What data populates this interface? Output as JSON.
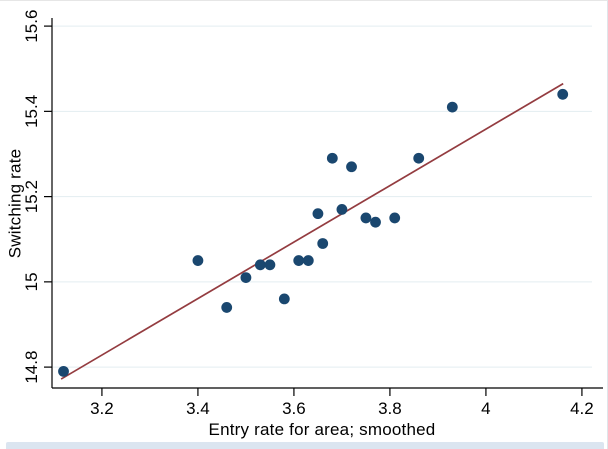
{
  "figure": {
    "background": "#ffffff",
    "border_top_color": "#e6e6e6",
    "border_right_color": "#dfe5ea",
    "bottom_strip_color": "#dbe5f0"
  },
  "chart_data": {
    "type": "scatter",
    "title": "",
    "xlabel": "Entry rate for area; smoothed",
    "ylabel": "Switching rate",
    "xlim": [
      3.096,
      4.221
    ],
    "ylim": [
      14.751,
      15.619
    ],
    "x_ticks": [
      3.2,
      3.4,
      3.6,
      3.8,
      4.0,
      4.2
    ],
    "x_tick_labels": [
      "3.2",
      "3.4",
      "3.6",
      "3.8",
      "4",
      "4.2"
    ],
    "y_ticks": [
      14.8,
      15.0,
      15.2,
      15.4,
      15.6
    ],
    "y_tick_labels": [
      "14.8",
      "15",
      "15.2",
      "15.4",
      "15.6"
    ],
    "grid": "horizontal-only",
    "legend": "none",
    "marker_color": "#1a476f",
    "marker_radius_px": 5.4,
    "grid_color": "#e3edf1",
    "axis_color": "#000000",
    "points": [
      [
        3.12,
        14.79
      ],
      [
        3.4,
        15.05
      ],
      [
        3.46,
        14.94
      ],
      [
        3.5,
        15.01
      ],
      [
        3.53,
        15.04
      ],
      [
        3.55,
        15.04
      ],
      [
        3.58,
        14.96
      ],
      [
        3.61,
        15.05
      ],
      [
        3.63,
        15.05
      ],
      [
        3.65,
        15.16
      ],
      [
        3.66,
        15.09
      ],
      [
        3.68,
        15.29
      ],
      [
        3.7,
        15.17
      ],
      [
        3.72,
        15.27
      ],
      [
        3.75,
        15.15
      ],
      [
        3.77,
        15.14
      ],
      [
        3.81,
        15.15
      ],
      [
        3.86,
        15.29
      ],
      [
        3.93,
        15.41
      ],
      [
        4.16,
        15.44
      ]
    ],
    "fit_line": {
      "color": "#943c40",
      "x1": 3.115,
      "y1": 14.772,
      "x2": 4.161,
      "y2": 15.465
    }
  }
}
